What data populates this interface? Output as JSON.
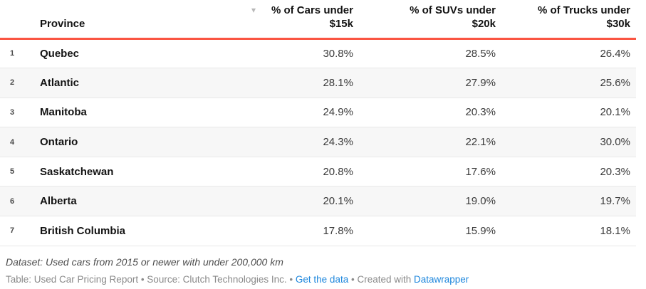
{
  "colors": {
    "header_rule_red": "#fa5542",
    "row_stripe_gray": "#f7f7f7",
    "row_border_gray": "#e8e8e8",
    "link_blue": "#1e87dd",
    "sort_arrow_gray": "#b8b8b8"
  },
  "header": {
    "province_label": "Province",
    "cars_label": "% of Cars under $15k",
    "suvs_label": "% of SUVs under $20k",
    "trucks_label": "% of Trucks under $30k",
    "sort_icon": "▾"
  },
  "chart_data": {
    "type": "table",
    "title": "",
    "sorted_column": "% of Cars under $15k",
    "sort_direction": "descending",
    "columns": [
      "Province",
      "% of Cars under $15k",
      "% of SUVs under $20k",
      "% of Trucks under $30k"
    ],
    "rows": [
      {
        "rank": "1",
        "province": "Quebec",
        "cars": "30.8%",
        "suvs": "28.5%",
        "trucks": "26.4%"
      },
      {
        "rank": "2",
        "province": "Atlantic",
        "cars": "28.1%",
        "suvs": "27.9%",
        "trucks": "25.6%"
      },
      {
        "rank": "3",
        "province": "Manitoba",
        "cars": "24.9%",
        "suvs": "20.3%",
        "trucks": "20.1%"
      },
      {
        "rank": "4",
        "province": "Ontario",
        "cars": "24.3%",
        "suvs": "22.1%",
        "trucks": "30.0%"
      },
      {
        "rank": "5",
        "province": "Saskatchewan",
        "cars": "20.8%",
        "suvs": "17.6%",
        "trucks": "20.3%"
      },
      {
        "rank": "6",
        "province": "Alberta",
        "cars": "20.1%",
        "suvs": "19.0%",
        "trucks": "19.7%"
      },
      {
        "rank": "7",
        "province": "British Columbia",
        "cars": "17.8%",
        "suvs": "15.9%",
        "trucks": "18.1%"
      }
    ]
  },
  "footer": {
    "dataset_note": "Dataset: Used cars from 2015 or newer with under 200,000 km",
    "attribution_prefix": "Table: Used Car Pricing Report • Source: Clutch Technologies Inc. • ",
    "get_data_link": "Get the data",
    "created_with_text": " • Created with ",
    "datawrapper_link": "Datawrapper"
  }
}
